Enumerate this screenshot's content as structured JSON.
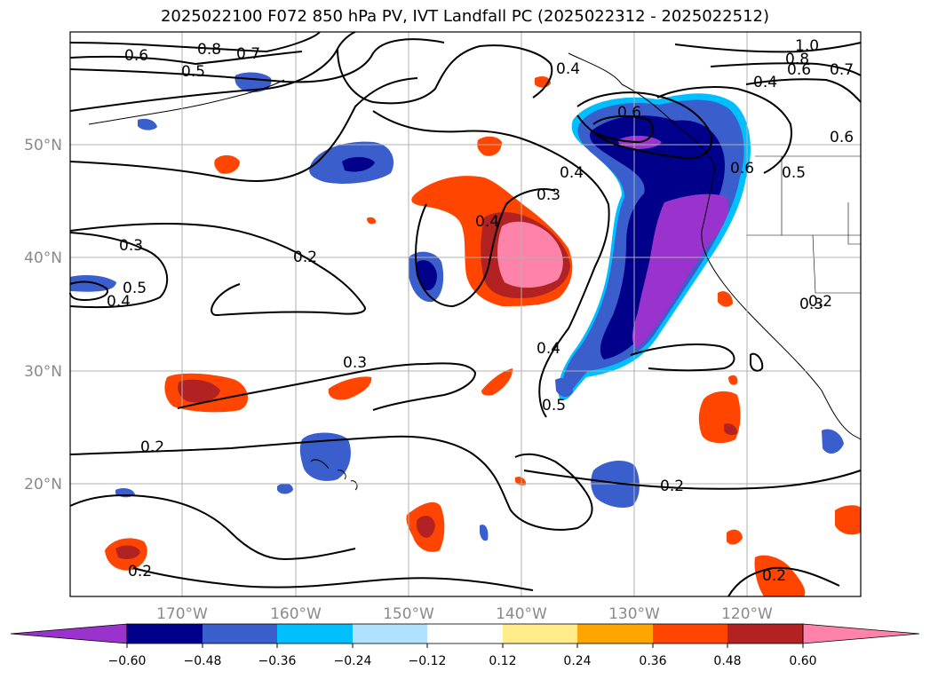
{
  "title": "2025022100 F072 850 hPa PV, IVT Landfall PC (2025022312 - 2025022512)",
  "map": {
    "lon_labels": [
      "170°W",
      "160°W",
      "150°W",
      "140°W",
      "130°W",
      "120°W"
    ],
    "lat_labels": [
      "50°N",
      "40°N",
      "30°N",
      "20°N"
    ]
  },
  "contour_labels": [
    "0.8",
    "0.7",
    "0.6",
    "0.5",
    "1.0",
    "0.8",
    "0.6",
    "0.7",
    "0.4",
    "0.4",
    "0.6",
    "0.6",
    "0.6",
    "0.5",
    "0.4",
    "0.3",
    "0.4",
    "0.3",
    "0.2",
    "0.3",
    "0.5",
    "0.4",
    "0.3",
    "0.4",
    "0.5",
    "0.2",
    "0.2",
    "0.2",
    "0.2",
    "0.2"
  ],
  "colorbar": {
    "ticks": [
      "−0.60",
      "−0.48",
      "−0.36",
      "−0.24",
      "−0.12",
      "0.12",
      "0.24",
      "0.36",
      "0.48",
      "0.60"
    ],
    "colors": [
      "#9a32cd",
      "#00008b",
      "#3a5fcd",
      "#00bfff",
      "#b0e2ff",
      "#ffffff",
      "#ffec8b",
      "#ffa500",
      "#ff4500",
      "#b22222",
      "#ff82ab"
    ]
  },
  "colors": {
    "purple": "#9a32cd",
    "navy": "#00008b",
    "blue": "#3a5fcd",
    "skyblue": "#00bfff",
    "lightblue": "#b0e2ff",
    "yellow": "#ffec8b",
    "orange": "#ffa500",
    "redorange": "#ff4500",
    "firebrick": "#b22222",
    "pink": "#ff82ab"
  }
}
